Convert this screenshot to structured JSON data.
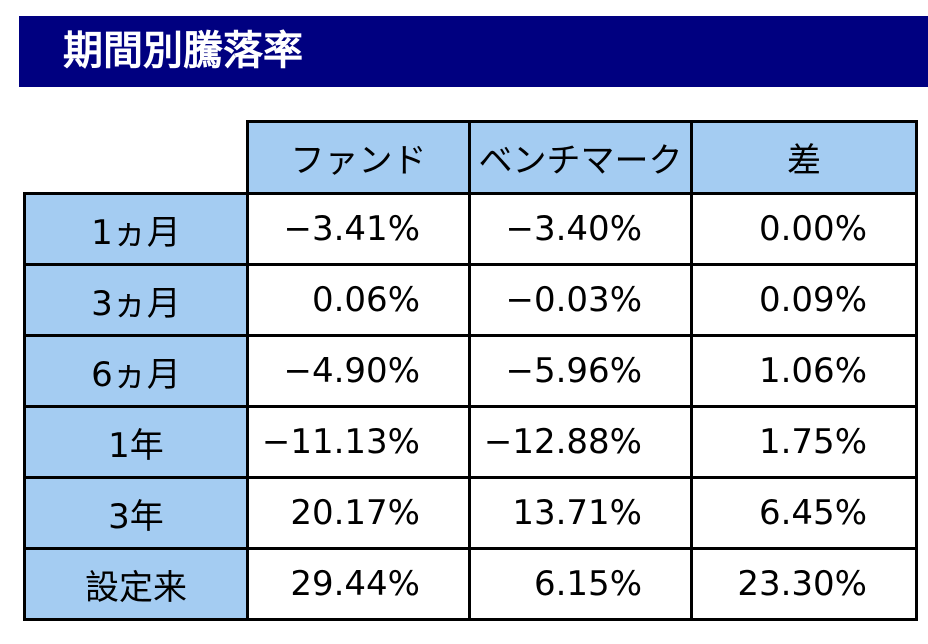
{
  "title": "期間別騰落率",
  "colors": {
    "title_bg": "#000080",
    "header_bg": "#a4ccf2",
    "border": "#000000"
  },
  "columns": [
    "ファンド",
    "ベンチマーク",
    "差"
  ],
  "rows": [
    {
      "period": "1ヵ月",
      "fund": "−3.41%",
      "benchmark": "−3.40%",
      "diff": "0.00%"
    },
    {
      "period": "3ヵ月",
      "fund": "0.06%",
      "benchmark": "−0.03%",
      "diff": "0.09%"
    },
    {
      "period": "6ヵ月",
      "fund": "−4.90%",
      "benchmark": "−5.96%",
      "diff": "1.06%"
    },
    {
      "period": "1年",
      "fund": "−11.13%",
      "benchmark": "−12.88%",
      "diff": "1.75%"
    },
    {
      "period": "3年",
      "fund": "20.17%",
      "benchmark": "13.71%",
      "diff": "6.45%"
    },
    {
      "period": "設定来",
      "fund": "29.44%",
      "benchmark": "6.15%",
      "diff": "23.30%"
    }
  ]
}
